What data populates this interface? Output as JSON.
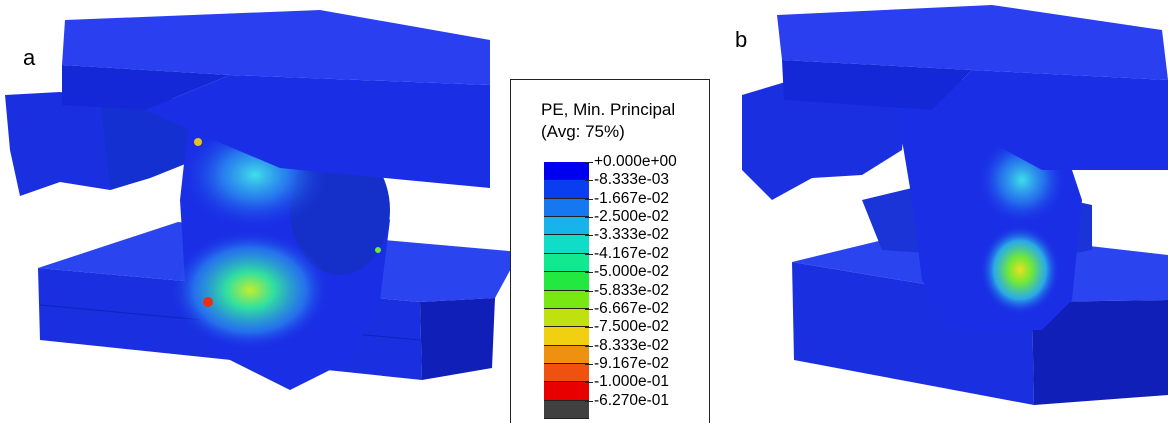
{
  "panels": [
    {
      "label": "a"
    },
    {
      "label": "b"
    }
  ],
  "legend": {
    "title_line1": "PE, Min. Principal",
    "title_line2": "(Avg: 75%)",
    "ticks": [
      "+0.000e+00",
      "-8.333e-03",
      "-1.667e-02",
      "-2.500e-02",
      "-3.333e-02",
      "-4.167e-02",
      "-5.000e-02",
      "-5.833e-02",
      "-6.667e-02",
      "-7.500e-02",
      "-8.333e-02",
      "-9.167e-02",
      "-1.000e-01",
      "-6.270e-01"
    ],
    "colors": [
      "#0000ee",
      "#0a3cf0",
      "#1678f0",
      "#16b4e8",
      "#10dcc8",
      "#12e890",
      "#22e840",
      "#78e812",
      "#c0e010",
      "#f0d010",
      "#f09010",
      "#f05010",
      "#e80000",
      "#404040"
    ]
  },
  "colors": {
    "model_blue": "#1a2ee6",
    "model_blue_dark": "#0f1fb8",
    "model_blue_light": "#2a45f0",
    "strain_cyan": "#2ec8e8",
    "strain_green": "#6ee83a",
    "strain_yellow": "#e8e020",
    "strain_red": "#e83010"
  }
}
